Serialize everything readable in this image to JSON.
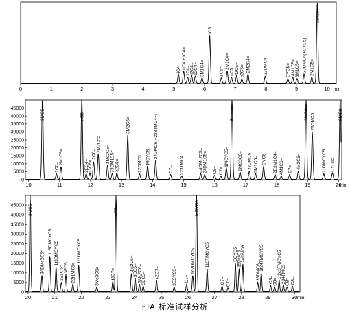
{
  "caption": "FIA 标准试样分析",
  "colors": {
    "trace": "#000000",
    "frame": "#000000"
  },
  "chart_data": [
    {
      "type": "line",
      "xlabel": "min",
      "ylabel": "",
      "xlim": [
        0,
        10.3
      ],
      "ylim": [
        0,
        1.05
      ],
      "yticks": [],
      "xticks": [
        0,
        1,
        2,
        3,
        4,
        5,
        6,
        7,
        8,
        9,
        10
      ],
      "peaks": [
        {
          "t": 5.15,
          "h": 0.12,
          "label": "iC4"
        },
        {
          "t": 5.32,
          "h": 0.16,
          "label": "nC4 + iC4="
        },
        {
          "t": 5.45,
          "h": 0.08,
          "label": "1C4="
        },
        {
          "t": 5.58,
          "h": 0.1,
          "label": "t2C4="
        },
        {
          "t": 5.7,
          "h": 0.09,
          "label": "c2C4="
        },
        {
          "t": 5.92,
          "h": 0.07,
          "label": "3M1C4="
        },
        {
          "t": 6.17,
          "h": 0.62,
          "label": "iC5"
        },
        {
          "t": 6.55,
          "h": 0.07,
          "label": "1C5="
        },
        {
          "t": 6.74,
          "h": 0.16,
          "label": "2M1C4="
        },
        {
          "t": 6.88,
          "h": 0.08,
          "label": "nC5"
        },
        {
          "t": 7.05,
          "h": 0.1,
          "label": "t2C5="
        },
        {
          "t": 7.22,
          "h": 0.06,
          "label": "c2C5="
        },
        {
          "t": 7.42,
          "h": 0.12,
          "label": "2M2C4="
        },
        {
          "t": 7.98,
          "h": 0.09,
          "label": "22DMC4"
        },
        {
          "t": 8.72,
          "h": 0.06,
          "label": "CYC5="
        },
        {
          "t": 8.88,
          "h": 0.08,
          "label": "4M1C5="
        },
        {
          "t": 9.02,
          "h": 0.06,
          "label": "3M1C5="
        },
        {
          "t": 9.25,
          "h": 0.12,
          "label": "23DMC4(+CYC5)"
        },
        {
          "t": 9.5,
          "h": 0.08,
          "label": "2M1C5="
        },
        {
          "t": 9.68,
          "h": 1.05,
          "label": "2MC5"
        }
      ]
    },
    {
      "type": "line",
      "xlabel": "min",
      "ylabel": "",
      "xlim": [
        9.9,
        20.1
      ],
      "ylim": [
        0,
        50000
      ],
      "yticks": [
        0,
        5000,
        10000,
        15000,
        20000,
        25000,
        30000,
        35000,
        40000,
        45000
      ],
      "xticks": [
        10,
        11,
        12,
        13,
        14,
        15,
        16,
        17,
        18,
        19,
        20
      ],
      "peaks": [
        {
          "t": 10.45,
          "h": 52000,
          "label": "3MC5"
        },
        {
          "t": 10.9,
          "h": 3500,
          "label": "1C6="
        },
        {
          "t": 11.05,
          "h": 8000,
          "label": "2M1C5="
        },
        {
          "t": 11.72,
          "h": 52000,
          "label": "nC6"
        },
        {
          "t": 11.86,
          "h": 3500,
          "label": "2EC4="
        },
        {
          "t": 11.98,
          "h": 4000,
          "label": "t3C6="
        },
        {
          "t": 12.1,
          "h": 11000,
          "label": "t2C6="
        },
        {
          "t": 12.25,
          "h": 16000,
          "label": "2M2C5="
        },
        {
          "t": 12.55,
          "h": 9000,
          "label": "3Mc2C5="
        },
        {
          "t": 12.7,
          "h": 3500,
          "label": "33DM1C5="
        },
        {
          "t": 12.85,
          "h": 4000,
          "label": "c2C6="
        },
        {
          "t": 13.2,
          "h": 28000,
          "label": "3M2C5="
        },
        {
          "t": 13.58,
          "h": 3500,
          "label": "22DMC5"
        },
        {
          "t": 13.84,
          "h": 8500,
          "label": "MCYC5"
        },
        {
          "t": 14.1,
          "h": 12000,
          "label": "24DMC5(+223TMC4=)"
        },
        {
          "t": 14.58,
          "h": 3000,
          "label": "C7="
        },
        {
          "t": 14.94,
          "h": 2000,
          "label": "223TMC4"
        },
        {
          "t": 15.55,
          "h": 3500,
          "label": "44DMc2C5="
        },
        {
          "t": 15.68,
          "h": 3000,
          "label": "24DM1C5="
        },
        {
          "t": 16.0,
          "h": 2500,
          "label": "C6="
        },
        {
          "t": 16.2,
          "h": 2000,
          "label": "C7="
        },
        {
          "t": 16.38,
          "h": 7000,
          "label": "1MCYC5="
        },
        {
          "t": 16.56,
          "h": 52000,
          "label": "B"
        },
        {
          "t": 16.82,
          "h": 4500,
          "label": "2MC3C6="
        },
        {
          "t": 17.12,
          "h": 5000,
          "label": "33DMC5"
        },
        {
          "t": 17.32,
          "h": 3500,
          "label": "5M1C6="
        },
        {
          "t": 17.58,
          "h": 8000,
          "label": "CYC6"
        },
        {
          "t": 17.95,
          "h": 3000,
          "label": "2E3M1C4="
        },
        {
          "t": 18.15,
          "h": 2000,
          "label": "4M1C6="
        },
        {
          "t": 18.42,
          "h": 3000,
          "label": "C7="
        },
        {
          "t": 18.7,
          "h": 5000,
          "label": "4M2C6="
        },
        {
          "t": 18.95,
          "h": 52000,
          "label": "2MC6"
        },
        {
          "t": 19.15,
          "h": 30000,
          "label": "23DMC5"
        },
        {
          "t": 19.52,
          "h": 3500,
          "label": "11DMCYC5"
        },
        {
          "t": 19.8,
          "h": 4000,
          "label": "CYC6="
        },
        {
          "t": 20.05,
          "h": 52000,
          "label": "3MC6"
        }
      ]
    },
    {
      "type": "line",
      "xlabel": "min",
      "ylabel": "",
      "xlim": [
        19.9,
        30.2
      ],
      "ylim": [
        0,
        50000
      ],
      "yticks": [
        0,
        5000,
        10000,
        15000,
        20000,
        25000,
        30000,
        35000,
        40000,
        45000
      ],
      "xticks": [
        20,
        21,
        22,
        23,
        24,
        25,
        26,
        27,
        28,
        29,
        30
      ],
      "peaks": [
        {
          "t": 20.08,
          "h": 52000,
          "label": "3MC6"
        },
        {
          "t": 20.52,
          "h": 8500,
          "label": "34DMc2C5="
        },
        {
          "t": 20.82,
          "h": 18500,
          "label": "1c3DMCYC5"
        },
        {
          "t": 21.05,
          "h": 13000,
          "label": "1t3DMCYC5"
        },
        {
          "t": 21.25,
          "h": 5000,
          "label": "2E1C5="
        },
        {
          "t": 21.42,
          "h": 9000,
          "label": "3EC5"
        },
        {
          "t": 21.68,
          "h": 4000,
          "label": "22t1MC5="
        },
        {
          "t": 21.9,
          "h": 14000,
          "label": "1t2DMCYC5"
        },
        {
          "t": 22.58,
          "h": 2500,
          "label": "3Mc3C6="
        },
        {
          "t": 23.18,
          "h": 5500,
          "label": "t3C7="
        },
        {
          "t": 23.3,
          "h": 52000,
          "label": "nC7"
        },
        {
          "t": 23.88,
          "h": 9500,
          "label": "2M2C6="
        },
        {
          "t": 24.02,
          "h": 7000,
          "label": "3EC5="
        },
        {
          "t": 24.18,
          "h": 4000,
          "label": "3Mc2C6="
        },
        {
          "t": 24.32,
          "h": 3000,
          "label": "3EC5="
        },
        {
          "t": 24.82,
          "h": 6000,
          "label": "c2C7="
        },
        {
          "t": 25.48,
          "h": 2500,
          "label": "3ECYC5="
        },
        {
          "t": 25.95,
          "h": 4000,
          "label": "C7="
        },
        {
          "t": 26.18,
          "h": 8500,
          "label": "1c2DMCYC5"
        },
        {
          "t": 26.32,
          "h": 52000,
          "label": "MCYC6"
        },
        {
          "t": 26.72,
          "h": 12000,
          "label": "113TMCYC5"
        },
        {
          "t": 27.28,
          "h": 3000,
          "label": "C7="
        },
        {
          "t": 27.5,
          "h": 2000,
          "label": "C7="
        },
        {
          "t": 27.78,
          "h": 15000,
          "label": "ECYC5"
        },
        {
          "t": 27.92,
          "h": 12000,
          "label": "25DMC6"
        },
        {
          "t": 28.06,
          "h": 14500,
          "label": "24DMC6"
        },
        {
          "t": 28.62,
          "h": 5000,
          "label": "33DMC6"
        },
        {
          "t": 28.75,
          "h": 10000,
          "label": "1t24TMCYC5"
        },
        {
          "t": 29.1,
          "h": 3500,
          "label": "C8="
        },
        {
          "t": 29.25,
          "h": 2500,
          "label": "C8="
        },
        {
          "t": 29.42,
          "h": 6000,
          "label": "1t2c3TMCYC5"
        },
        {
          "t": 29.58,
          "h": 3500,
          "label": "234TMC5"
        },
        {
          "t": 29.72,
          "h": 2500,
          "label": "C8="
        },
        {
          "t": 29.92,
          "h": 3000,
          "label": "C8="
        }
      ]
    }
  ]
}
